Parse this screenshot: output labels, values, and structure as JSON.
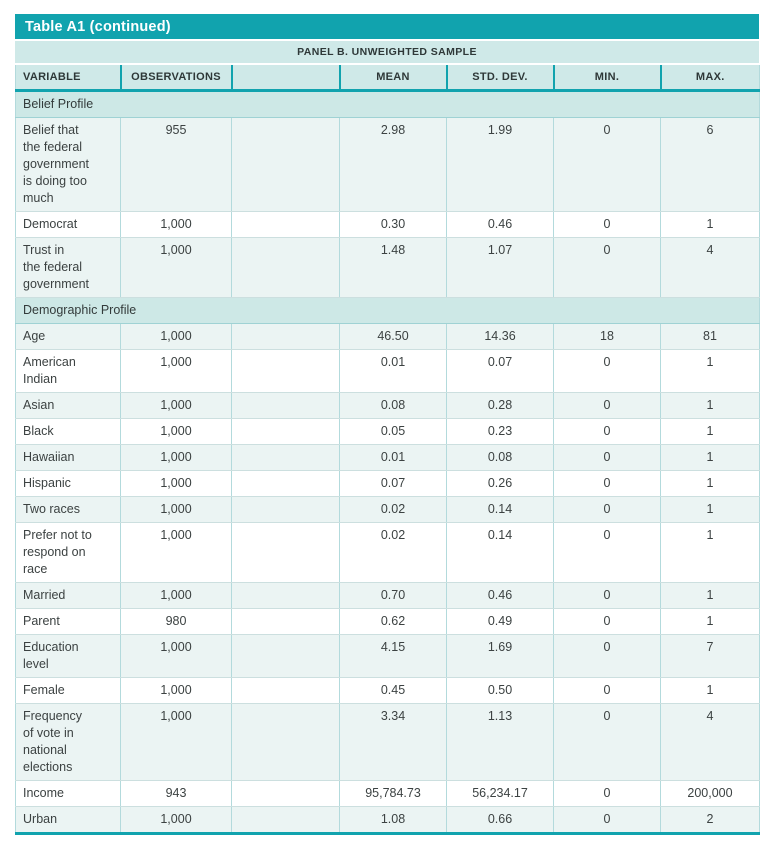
{
  "header": {
    "title": "Table A1 (continued)",
    "panel": "PANEL B. UNWEIGHTED SAMPLE"
  },
  "columns": [
    "VARIABLE",
    "OBSERVATIONS",
    "",
    "MEAN",
    "STD. DEV.",
    "MIN.",
    "MAX."
  ],
  "sections": [
    {
      "label": "Belief Profile",
      "rows": [
        [
          "Belief that\nthe federal\ngovernment\nis doing too\nmuch",
          "955",
          "",
          "2.98",
          "1.99",
          "0",
          "6"
        ],
        [
          "Democrat",
          "1,000",
          "",
          "0.30",
          "0.46",
          "0",
          "1"
        ],
        [
          "Trust in\nthe federal\ngovernment",
          "1,000",
          "",
          "1.48",
          "1.07",
          "0",
          "4"
        ]
      ]
    },
    {
      "label": "Demographic Profile",
      "rows": [
        [
          "Age",
          "1,000",
          "",
          "46.50",
          "14.36",
          "18",
          "81"
        ],
        [
          "American\nIndian",
          "1,000",
          "",
          "0.01",
          "0.07",
          "0",
          "1"
        ],
        [
          "Asian",
          "1,000",
          "",
          "0.08",
          "0.28",
          "0",
          "1"
        ],
        [
          "Black",
          "1,000",
          "",
          "0.05",
          "0.23",
          "0",
          "1"
        ],
        [
          "Hawaiian",
          "1,000",
          "",
          "0.01",
          "0.08",
          "0",
          "1"
        ],
        [
          "Hispanic",
          "1,000",
          "",
          "0.07",
          "0.26",
          "0",
          "1"
        ],
        [
          "Two races",
          "1,000",
          "",
          "0.02",
          "0.14",
          "0",
          "1"
        ],
        [
          "Prefer not to\nrespond on\nrace",
          "1,000",
          "",
          "0.02",
          "0.14",
          "0",
          "1"
        ],
        [
          "Married",
          "1,000",
          "",
          "0.70",
          "0.46",
          "0",
          "1"
        ],
        [
          "Parent",
          "980",
          "",
          "0.62",
          "0.49",
          "0",
          "1"
        ],
        [
          "Education\nlevel",
          "1,000",
          "",
          "4.15",
          "1.69",
          "0",
          "7"
        ],
        [
          "Female",
          "1,000",
          "",
          "0.45",
          "0.50",
          "0",
          "1"
        ],
        [
          "Frequency\nof vote in\nnational\nelections",
          "1,000",
          "",
          "3.34",
          "1.13",
          "0",
          "4"
        ],
        [
          "Income",
          "943",
          "",
          "95,784.73",
          "56,234.17",
          "0",
          "200,000"
        ],
        [
          "Urban",
          "1,000",
          "",
          "1.08",
          "0.66",
          "0",
          "2"
        ]
      ]
    }
  ],
  "colors": {
    "accent_teal": "#11a3ae",
    "header_bg": "#cfe9e8",
    "section_bg": "#cde8e6",
    "stripe_bg": "#ebf4f3",
    "text": "#3c4242"
  }
}
